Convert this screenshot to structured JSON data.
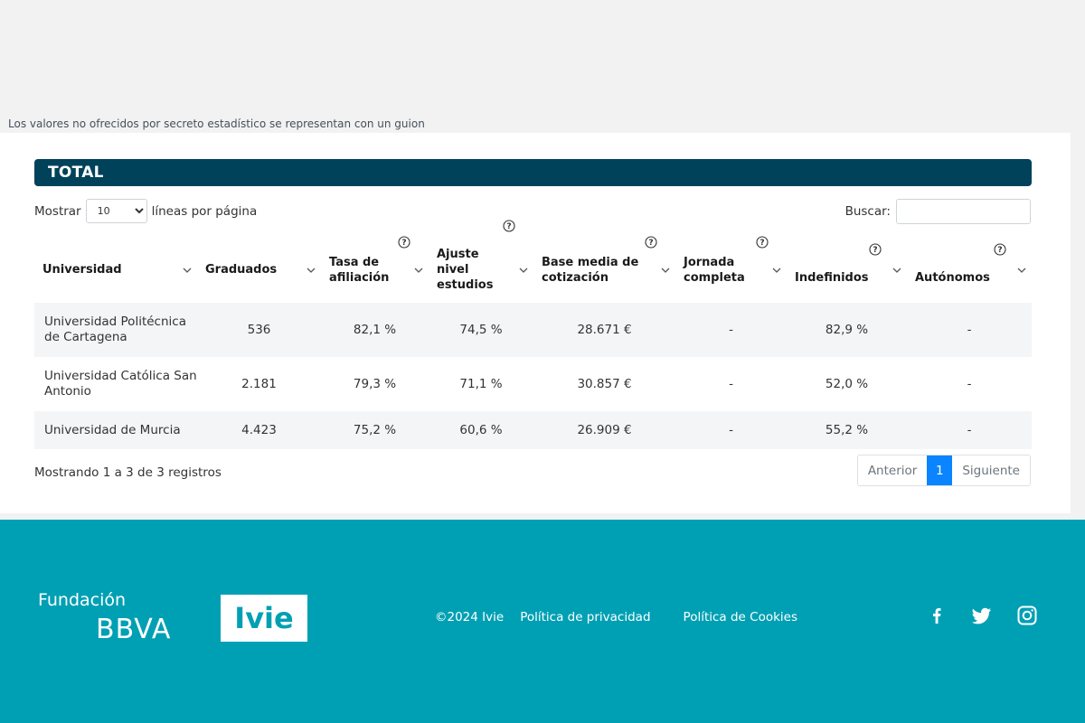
{
  "note": "Los valores no ofrecidos por secreto estadístico se representan con un guion",
  "section_title": "TOTAL",
  "length_control": {
    "prefix": "Mostrar",
    "value": "10",
    "suffix": "líneas por página"
  },
  "search": {
    "label": "Buscar:",
    "value": ""
  },
  "table": {
    "headers": [
      {
        "label": "Universidad",
        "help": false
      },
      {
        "label": "Graduados",
        "help": false
      },
      {
        "label": "Tasa de afiliación",
        "help": true
      },
      {
        "label": "Ajuste nivel estudios",
        "help": true
      },
      {
        "label": "Base media de cotización",
        "help": true
      },
      {
        "label": "Jornada completa",
        "help": true
      },
      {
        "label": "Indefinidos",
        "help": true
      },
      {
        "label": "Autónomos",
        "help": true
      }
    ],
    "rows": [
      {
        "universidad": "Universidad Politécnica de Cartagena",
        "graduados": "536",
        "tasa_afiliacion": "82,1 %",
        "ajuste_nivel": "74,5 %",
        "base_media": "28.671 €",
        "jornada_completa": "-",
        "indefinidos": "82,9 %",
        "autonomos": "-"
      },
      {
        "universidad": "Universidad Católica San Antonio",
        "graduados": "2.181",
        "tasa_afiliacion": "79,3 %",
        "ajuste_nivel": "71,1 %",
        "base_media": "30.857 €",
        "jornada_completa": "-",
        "indefinidos": "52,0 %",
        "autonomos": "-"
      },
      {
        "universidad": "Universidad de Murcia",
        "graduados": "4.423",
        "tasa_afiliacion": "75,2 %",
        "ajuste_nivel": "60,6 %",
        "base_media": "26.909 €",
        "jornada_completa": "-",
        "indefinidos": "55,2 %",
        "autonomos": "-"
      }
    ]
  },
  "info": "Mostrando 1 a 3 de 3 registros",
  "pagination": {
    "previous": "Anterior",
    "current": "1",
    "next": "Siguiente"
  },
  "footer": {
    "brand_line1": "Fundación",
    "brand_line2": "BBVA",
    "partner_logo": "Ivie",
    "links": [
      "©2024 Ivie",
      "Política de privacidad",
      "Política de Cookies"
    ],
    "social": [
      "facebook-icon",
      "twitter-icon",
      "instagram-icon"
    ]
  },
  "colors": {
    "title_bar": "#00425a",
    "footer": "#00a0b4",
    "pager_active": "#0b84ff"
  }
}
